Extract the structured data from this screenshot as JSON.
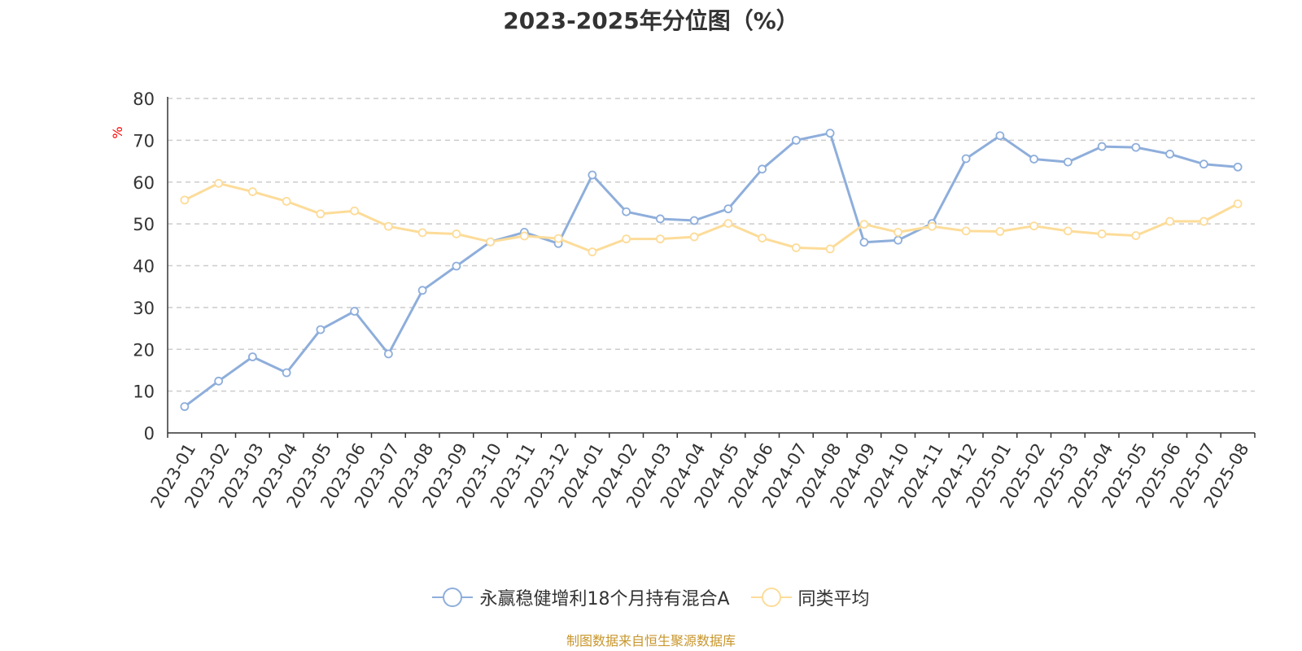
{
  "title": "2023-2025年分位图（%）",
  "source_note": "制图数据来自恒生聚源数据库",
  "chart_data": {
    "type": "line",
    "title": "2023-2025年分位图（%）",
    "ylabel": "%",
    "ylim": [
      0,
      80
    ],
    "yticks": [
      0,
      10,
      20,
      30,
      40,
      50,
      60,
      70,
      80
    ],
    "grid": true,
    "legend_position": "bottom",
    "categories": [
      "2023-01",
      "2023-02",
      "2023-03",
      "2023-04",
      "2023-05",
      "2023-06",
      "2023-07",
      "2023-08",
      "2023-09",
      "2023-10",
      "2023-11",
      "2023-12",
      "2024-01",
      "2024-02",
      "2024-03",
      "2024-04",
      "2024-05",
      "2024-06",
      "2024-07",
      "2024-08",
      "2024-09",
      "2024-10",
      "2024-11",
      "2024-12",
      "2025-01",
      "2025-02",
      "2025-03",
      "2025-04",
      "2025-05",
      "2025-06",
      "2025-07",
      "2025-08"
    ],
    "series": [
      {
        "name": "永赢稳健增利18个月持有混合A",
        "color": "#8eaedb",
        "values": [
          6.3,
          12.4,
          18.2,
          14.4,
          24.7,
          29.1,
          18.9,
          34.1,
          39.9,
          45.7,
          48.0,
          45.3,
          61.7,
          52.9,
          51.2,
          50.8,
          53.6,
          63.1,
          70.0,
          71.7,
          45.6,
          46.1,
          50.1,
          65.6,
          71.1,
          65.5,
          64.8,
          68.5,
          68.3,
          66.7,
          64.3,
          63.6
        ]
      },
      {
        "name": "同类平均",
        "color": "#fddc99",
        "values": [
          55.7,
          59.7,
          57.7,
          55.4,
          52.4,
          53.1,
          49.4,
          47.9,
          47.6,
          45.7,
          47.1,
          46.5,
          43.3,
          46.4,
          46.4,
          46.9,
          50.1,
          46.6,
          44.3,
          44.0,
          49.9,
          48.0,
          49.4,
          48.3,
          48.2,
          49.5,
          48.3,
          47.6,
          47.2,
          50.6,
          50.6,
          54.8
        ]
      }
    ]
  }
}
